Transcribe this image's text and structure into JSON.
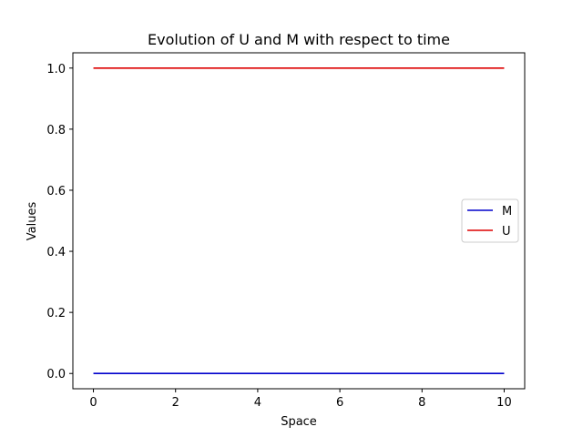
{
  "chart_data": {
    "type": "line",
    "title": "Evolution of U and M with respect to time",
    "xlabel": "Space",
    "ylabel": "Values",
    "xlim": [
      -0.5,
      10.5
    ],
    "ylim": [
      -0.05,
      1.05
    ],
    "xticks": [
      0,
      2,
      4,
      6,
      8,
      10
    ],
    "xtick_labels": [
      "0",
      "2",
      "4",
      "6",
      "8",
      "10"
    ],
    "yticks": [
      0.0,
      0.2,
      0.4,
      0.6,
      0.8,
      1.0
    ],
    "ytick_labels": [
      "0.0",
      "0.2",
      "0.4",
      "0.6",
      "0.8",
      "1.0"
    ],
    "grid": false,
    "legend_position": "center-right",
    "series": [
      {
        "name": "M",
        "color": "#0000cc",
        "x": [
          0,
          10
        ],
        "y": [
          0,
          0
        ]
      },
      {
        "name": "U",
        "color": "#dd0000",
        "x": [
          0,
          10
        ],
        "y": [
          1,
          1
        ]
      }
    ]
  }
}
